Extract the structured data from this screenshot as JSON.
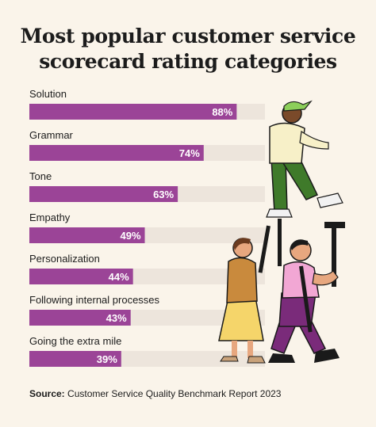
{
  "title_line1": "Most popular customer service",
  "title_line2": "scorecard rating categories",
  "source_label": "Source:",
  "source_text": " Customer Service Quality Benchmark Report 2023",
  "colors": {
    "bar": "#9b4497",
    "track": "#ede5dc",
    "background": "#faf4ea"
  },
  "chart_data": {
    "type": "bar",
    "orientation": "horizontal",
    "categories": [
      "Solution",
      "Grammar",
      "Tone",
      "Empathy",
      "Personalization",
      "Following internal processes",
      "Going the extra mile"
    ],
    "values": [
      88,
      74,
      63,
      49,
      44,
      43,
      39
    ],
    "value_labels": [
      "88%",
      "74%",
      "63%",
      "49%",
      "44%",
      "43%",
      "39%"
    ],
    "xlim": [
      0,
      100
    ],
    "grid": false
  }
}
